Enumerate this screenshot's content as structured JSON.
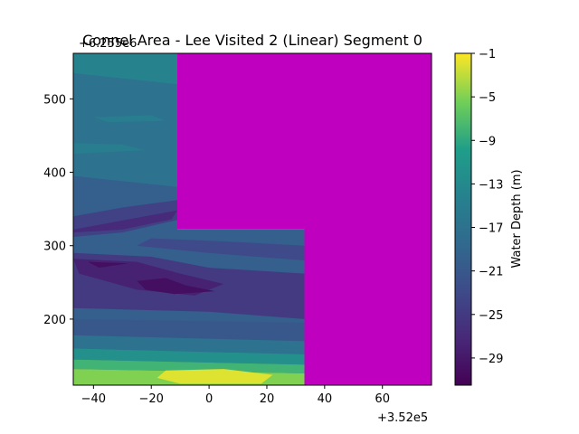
{
  "chart_data": {
    "type": "heatmap",
    "subtype": "filled-contour",
    "title": "Connel Area - Lee Visited 2 (Linear) Segment 0",
    "x_offset_label": "+3.52e5",
    "y_offset_label": "+6.255e6",
    "xlim": [
      -47,
      77
    ],
    "ylim": [
      110,
      562
    ],
    "xticks": [
      -40,
      -20,
      0,
      20,
      40,
      60
    ],
    "xtick_labels": [
      "−40",
      "−20",
      "0",
      "20",
      "40",
      "60"
    ],
    "yticks": [
      200,
      300,
      400,
      500
    ],
    "ytick_labels": [
      "200",
      "300",
      "400",
      "500"
    ],
    "colorbar": {
      "label": "Water Depth (m)",
      "range": [
        -31.5,
        -1
      ],
      "ticks": [
        -1,
        -5,
        -9,
        -13,
        -17,
        -21,
        -25,
        -29
      ],
      "tick_labels": [
        "−1",
        "−5",
        "−9",
        "−13",
        "−17",
        "−21",
        "−25",
        "−29"
      ],
      "colormap": "viridis"
    },
    "masked_region_color": "#bf00bf",
    "masked_region": [
      [
        -11,
        562
      ],
      [
        77,
        562
      ],
      [
        77,
        110
      ],
      [
        33,
        110
      ],
      [
        33,
        323
      ],
      [
        -11,
        323
      ]
    ],
    "depth_regions": [
      {
        "depth": -20,
        "poly": [
          [
            -47,
            110
          ],
          [
            33,
            110
          ],
          [
            33,
            323
          ],
          [
            -11,
            323
          ],
          [
            -11,
            562
          ],
          [
            -47,
            562
          ]
        ]
      },
      {
        "depth": -17,
        "poly": [
          [
            -47,
            562
          ],
          [
            -11,
            562
          ],
          [
            -11,
            380
          ],
          [
            -47,
            395
          ]
        ]
      },
      {
        "depth": -14,
        "poly": [
          [
            -47,
            562
          ],
          [
            -11,
            562
          ],
          [
            -11,
            520
          ],
          [
            -47,
            535
          ]
        ]
      },
      {
        "depth": -15,
        "poly": [
          [
            -40,
            475
          ],
          [
            -20,
            478
          ],
          [
            -15,
            470
          ],
          [
            -35,
            468
          ]
        ]
      },
      {
        "depth": -15,
        "poly": [
          [
            -47,
            440
          ],
          [
            -30,
            438
          ],
          [
            -22,
            430
          ],
          [
            -47,
            425
          ]
        ]
      },
      {
        "depth": -24,
        "poly": [
          [
            -47,
            340
          ],
          [
            -30,
            352
          ],
          [
            -11,
            362
          ],
          [
            -11,
            335
          ],
          [
            -30,
            318
          ],
          [
            -47,
            312
          ]
        ]
      },
      {
        "depth": -27,
        "poly": [
          [
            -47,
            322
          ],
          [
            -25,
            338
          ],
          [
            -11,
            348
          ],
          [
            -13,
            336
          ],
          [
            -30,
            322
          ],
          [
            -47,
            318
          ]
        ]
      },
      {
        "depth": -23,
        "poly": [
          [
            -20,
            310
          ],
          [
            10,
            305
          ],
          [
            33,
            300
          ],
          [
            33,
            280
          ],
          [
            0,
            290
          ],
          [
            -25,
            300
          ]
        ]
      },
      {
        "depth": -25,
        "poly": [
          [
            -47,
            290
          ],
          [
            -20,
            285
          ],
          [
            0,
            270
          ],
          [
            33,
            262
          ],
          [
            33,
            200
          ],
          [
            0,
            210
          ],
          [
            -47,
            215
          ]
        ]
      },
      {
        "depth": -28,
        "poly": [
          [
            -47,
            282
          ],
          [
            -25,
            278
          ],
          [
            -10,
            262
          ],
          [
            5,
            248
          ],
          [
            -5,
            232
          ],
          [
            -25,
            240
          ],
          [
            -45,
            262
          ]
        ]
      },
      {
        "depth": -30,
        "poly": [
          [
            -42,
            278
          ],
          [
            -28,
            276
          ],
          [
            -38,
            270
          ]
        ]
      },
      {
        "depth": -30,
        "poly": [
          [
            -25,
            252
          ],
          [
            -15,
            256
          ],
          [
            -8,
            246
          ],
          [
            2,
            238
          ],
          [
            -12,
            234
          ],
          [
            -22,
            240
          ]
        ]
      },
      {
        "depth": -21,
        "poly": [
          [
            -47,
            200
          ],
          [
            33,
            195
          ],
          [
            33,
            165
          ],
          [
            -47,
            175
          ]
        ]
      },
      {
        "depth": -17,
        "poly": [
          [
            -47,
            178
          ],
          [
            33,
            170
          ],
          [
            33,
            152
          ],
          [
            -47,
            160
          ]
        ]
      },
      {
        "depth": -12,
        "poly": [
          [
            -47,
            160
          ],
          [
            33,
            152
          ],
          [
            33,
            138
          ],
          [
            -47,
            145
          ]
        ]
      },
      {
        "depth": -8,
        "poly": [
          [
            -47,
            145
          ],
          [
            33,
            138
          ],
          [
            33,
            126
          ],
          [
            -47,
            132
          ]
        ]
      },
      {
        "depth": -5,
        "poly": [
          [
            -47,
            132
          ],
          [
            33,
            126
          ],
          [
            33,
            110
          ],
          [
            -47,
            110
          ]
        ]
      },
      {
        "depth": -2,
        "poly": [
          [
            -15,
            130
          ],
          [
            5,
            132
          ],
          [
            22,
            124
          ],
          [
            18,
            112
          ],
          [
            -10,
            112
          ],
          [
            -18,
            120
          ]
        ]
      }
    ]
  }
}
